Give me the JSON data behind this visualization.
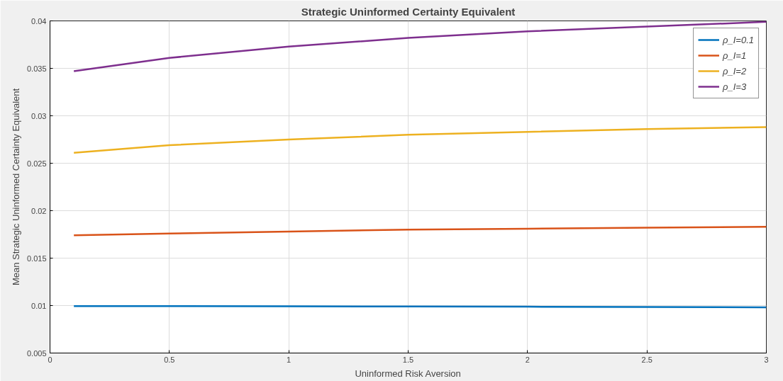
{
  "chart_data": {
    "type": "line",
    "title": "Strategic Uninformed Certainty Equivalent",
    "xlabel": "Uninformed Risk Aversion",
    "ylabel": "Mean Strategic Uninformed Certainty Equivalent",
    "x": [
      0.1,
      0.5,
      1,
      1.5,
      2,
      2.5,
      3
    ],
    "series": [
      {
        "name": "ρ_I=0.1",
        "color": "#0072bd",
        "values": [
          0.00995,
          0.00994,
          0.00992,
          0.0099,
          0.00988,
          0.00985,
          0.00982
        ]
      },
      {
        "name": "ρ_I=1",
        "color": "#d95319",
        "values": [
          0.0174,
          0.0176,
          0.0178,
          0.018,
          0.0181,
          0.0182,
          0.0183
        ]
      },
      {
        "name": "ρ_I=2",
        "color": "#edb120",
        "values": [
          0.0261,
          0.0269,
          0.0275,
          0.028,
          0.0283,
          0.0286,
          0.0288
        ]
      },
      {
        "name": "ρ_I=3",
        "color": "#7e2f8e",
        "values": [
          0.0347,
          0.0361,
          0.0373,
          0.0382,
          0.0389,
          0.0394,
          0.0399
        ]
      }
    ],
    "xlim": [
      0,
      3
    ],
    "xticks": [
      0,
      0.5,
      1,
      1.5,
      2,
      2.5,
      3
    ],
    "ylim": [
      0.005,
      0.04
    ],
    "yticks": [
      0.005,
      0.01,
      0.015,
      0.02,
      0.025,
      0.03,
      0.035,
      0.04
    ],
    "grid": true,
    "legend": "top right",
    "marker": "none",
    "line_style": "solid"
  }
}
